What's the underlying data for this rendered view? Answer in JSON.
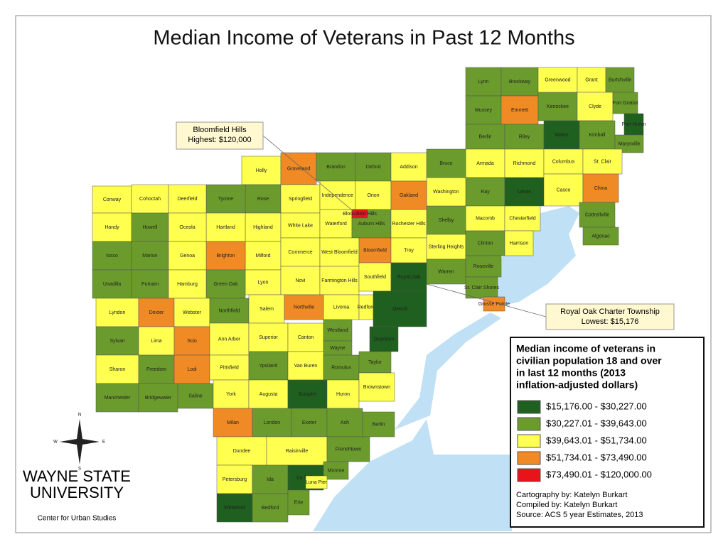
{
  "title": "Median Income of Veterans in Past 12 Months",
  "callouts": [
    {
      "lines": [
        "Bloomfield Hills",
        "Highest: $120,000"
      ]
    },
    {
      "lines": [
        "Royal Oak Charter Township",
        "Lowest: $15,176"
      ]
    }
  ],
  "legend": {
    "title": [
      "Median income of veterans in",
      "civilian population 18 and over",
      "in last 12 months (2013",
      "inflation-adjusted dollars)"
    ],
    "classes": [
      {
        "label": "$15,176.00 - $30,227.00",
        "color": "#1f5f1f"
      },
      {
        "label": "$30,227.01 - $39,643.00",
        "color": "#6b9b2c"
      },
      {
        "label": "$39,643.01 - $51,734.00",
        "color": "#ffff50"
      },
      {
        "label": "$51,734.01 - $73,490.00",
        "color": "#f08a24"
      },
      {
        "label": "$73,490.01 - $120,000.00",
        "color": "#e8141a"
      }
    ],
    "credits": [
      "Cartography by: Katelyn Burkart",
      "Compiled by: Katelyn Burkart",
      "Source: ACS 5 year Estimates, 2013"
    ]
  },
  "compass": [
    "N",
    "E",
    "S",
    "W"
  ],
  "logo": {
    "line1": "WAYNE STATE",
    "line2": "UNIVERSITY",
    "subtitle": "Center for Urban Studies"
  },
  "townships": [
    {
      "name": "Lynn",
      "class": 1
    },
    {
      "name": "Brockway",
      "class": 1
    },
    {
      "name": "Greenwood",
      "class": 2
    },
    {
      "name": "Grant",
      "class": 2
    },
    {
      "name": "Burtchville",
      "class": 1
    },
    {
      "name": "Mussey",
      "class": 1
    },
    {
      "name": "Emmett",
      "class": 3
    },
    {
      "name": "Kenockee",
      "class": 1
    },
    {
      "name": "Clyde",
      "class": 2
    },
    {
      "name": "Fort Gratiot",
      "class": 1
    },
    {
      "name": "Port Huron",
      "class": 0
    },
    {
      "name": "Berlin",
      "class": 1
    },
    {
      "name": "Riley",
      "class": 1
    },
    {
      "name": "Wales",
      "class": 0
    },
    {
      "name": "Kimball",
      "class": 1
    },
    {
      "name": "Marysville",
      "class": 1
    },
    {
      "name": "Armada",
      "class": 2
    },
    {
      "name": "Richmond",
      "class": 2
    },
    {
      "name": "Columbus",
      "class": 2
    },
    {
      "name": "St. Clair",
      "class": 2
    },
    {
      "name": "Ray",
      "class": 1
    },
    {
      "name": "Lenox",
      "class": 0
    },
    {
      "name": "Casco",
      "class": 2
    },
    {
      "name": "China",
      "class": 3
    },
    {
      "name": "Macomb",
      "class": 2
    },
    {
      "name": "Chesterfield",
      "class": 2
    },
    {
      "name": "Cottrellville",
      "class": 1
    },
    {
      "name": "Algonac",
      "class": 1
    },
    {
      "name": "Shelby",
      "class": 1
    },
    {
      "name": "Washington",
      "class": 2
    },
    {
      "name": "Bruce",
      "class": 1
    },
    {
      "name": "Sterling Heights",
      "class": 2
    },
    {
      "name": "Clinton",
      "class": 1
    },
    {
      "name": "Harrison",
      "class": 2
    },
    {
      "name": "Warren",
      "class": 1
    },
    {
      "name": "Roseville",
      "class": 1
    },
    {
      "name": "St. Clair Shores",
      "class": 1
    },
    {
      "name": "Holly",
      "class": 2
    },
    {
      "name": "Groveland",
      "class": 3
    },
    {
      "name": "Brandon",
      "class": 1
    },
    {
      "name": "Oxford",
      "class": 1
    },
    {
      "name": "Addison",
      "class": 2
    },
    {
      "name": "Rose",
      "class": 1
    },
    {
      "name": "Springfield",
      "class": 2
    },
    {
      "name": "Independence",
      "class": 2
    },
    {
      "name": "Orion",
      "class": 2
    },
    {
      "name": "Oakland",
      "class": 3
    },
    {
      "name": "Highland",
      "class": 2
    },
    {
      "name": "White Lake",
      "class": 2
    },
    {
      "name": "Waterford",
      "class": 2
    },
    {
      "name": "Auburn Hills",
      "class": 1
    },
    {
      "name": "Rochester Hills",
      "class": 2
    },
    {
      "name": "Milford",
      "class": 2
    },
    {
      "name": "Commerce",
      "class": 2
    },
    {
      "name": "West Bloomfield",
      "class": 2
    },
    {
      "name": "Bloomfield",
      "class": 3
    },
    {
      "name": "Troy",
      "class": 2
    },
    {
      "name": "Lyon",
      "class": 2
    },
    {
      "name": "Novi",
      "class": 2
    },
    {
      "name": "Farmington Hills",
      "class": 2
    },
    {
      "name": "Southfield",
      "class": 2
    },
    {
      "name": "Royal Oak",
      "class": 0
    },
    {
      "name": "Tyrone",
      "class": 1
    },
    {
      "name": "Hartland",
      "class": 2
    },
    {
      "name": "Brighton",
      "class": 3
    },
    {
      "name": "Green Oak",
      "class": 1
    },
    {
      "name": "Conway",
      "class": 2
    },
    {
      "name": "Cohoctah",
      "class": 2
    },
    {
      "name": "Deerfield",
      "class": 2
    },
    {
      "name": "Handy",
      "class": 2
    },
    {
      "name": "Howell",
      "class": 1
    },
    {
      "name": "Oceola",
      "class": 2
    },
    {
      "name": "Iosco",
      "class": 1
    },
    {
      "name": "Marion",
      "class": 1
    },
    {
      "name": "Genoa",
      "class": 2
    },
    {
      "name": "Unadilla",
      "class": 1
    },
    {
      "name": "Putnam",
      "class": 1
    },
    {
      "name": "Hamburg",
      "class": 2
    },
    {
      "name": "Lyndon",
      "class": 2
    },
    {
      "name": "Dexter",
      "class": 3
    },
    {
      "name": "Webster",
      "class": 2
    },
    {
      "name": "Northfield",
      "class": 1
    },
    {
      "name": "Salem",
      "class": 2
    },
    {
      "name": "Sylvan",
      "class": 1
    },
    {
      "name": "Lima",
      "class": 2
    },
    {
      "name": "Scio",
      "class": 3
    },
    {
      "name": "Ann Arbor",
      "class": 2
    },
    {
      "name": "Superior",
      "class": 2
    },
    {
      "name": "Sharon",
      "class": 2
    },
    {
      "name": "Freedom",
      "class": 1
    },
    {
      "name": "Lodi",
      "class": 3
    },
    {
      "name": "Pittsfield",
      "class": 2
    },
    {
      "name": "Ypsilanti",
      "class": 1
    },
    {
      "name": "Manchester",
      "class": 1
    },
    {
      "name": "Bridgewater",
      "class": 1
    },
    {
      "name": "Saline",
      "class": 1
    },
    {
      "name": "York",
      "class": 2
    },
    {
      "name": "Augusta",
      "class": 2
    },
    {
      "name": "Northville",
      "class": 3
    },
    {
      "name": "Livonia",
      "class": 2
    },
    {
      "name": "Redford",
      "class": 2
    },
    {
      "name": "Canton",
      "class": 2
    },
    {
      "name": "Westland",
      "class": 1
    },
    {
      "name": "Wayne",
      "class": 1
    },
    {
      "name": "Van Buren",
      "class": 2
    },
    {
      "name": "Romulus",
      "class": 1
    },
    {
      "name": "Taylor",
      "class": 1
    },
    {
      "name": "Sumpter",
      "class": 0
    },
    {
      "name": "Huron",
      "class": 2
    },
    {
      "name": "Brownstown",
      "class": 2
    },
    {
      "name": "Detroit",
      "class": 0
    },
    {
      "name": "Dearborn",
      "class": 0
    },
    {
      "name": "Grosse Pointe",
      "class": 3
    },
    {
      "name": "Milan",
      "class": 3
    },
    {
      "name": "London",
      "class": 1
    },
    {
      "name": "Exeter",
      "class": 1
    },
    {
      "name": "Ash",
      "class": 1
    },
    {
      "name": "Berlin",
      "class": 1
    },
    {
      "name": "Dundee",
      "class": 2
    },
    {
      "name": "Raisinville",
      "class": 2
    },
    {
      "name": "Frenchtown",
      "class": 1
    },
    {
      "name": "Petersburg",
      "class": 2
    },
    {
      "name": "Ida",
      "class": 1
    },
    {
      "name": "Monroe",
      "class": 1
    },
    {
      "name": "La Salle",
      "class": 0
    },
    {
      "name": "Whiteford",
      "class": 0
    },
    {
      "name": "Bedford",
      "class": 1
    },
    {
      "name": "Erie",
      "class": 1
    },
    {
      "name": "Luna Pier",
      "class": 2
    },
    {
      "name": "Bloomfield Hills",
      "class": 4
    }
  ]
}
